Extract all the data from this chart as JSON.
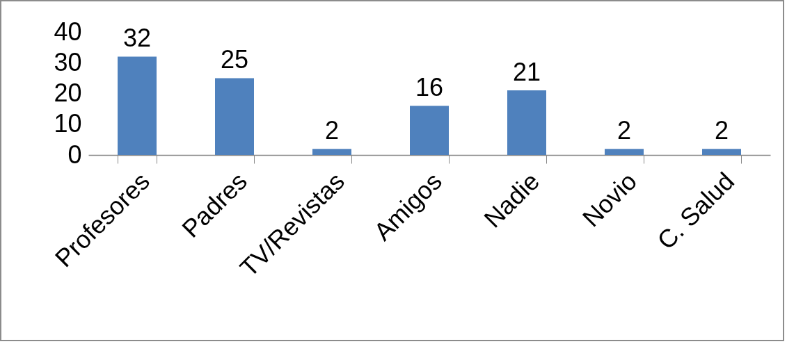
{
  "chart_data": {
    "type": "bar",
    "categories": [
      "Profesores",
      "Padres",
      "TV/Revistas",
      "Amigos",
      "Nadie",
      "Novio",
      "C. Salud"
    ],
    "values": [
      32,
      25,
      2,
      16,
      21,
      2,
      2
    ],
    "color": "#4f81bd",
    "ylim": [
      0,
      40
    ],
    "yticks": [
      0,
      10,
      20,
      30,
      40
    ],
    "grid": false,
    "data_labels": true
  }
}
